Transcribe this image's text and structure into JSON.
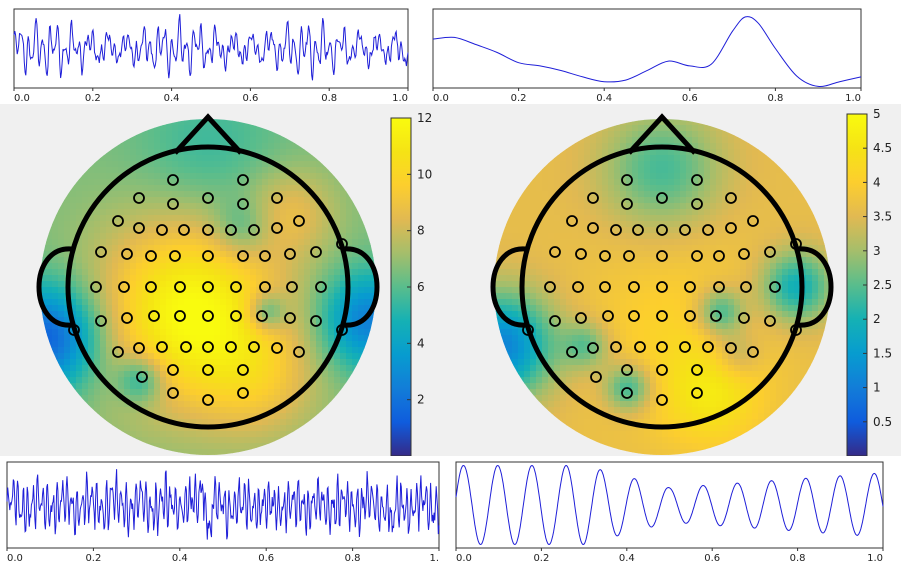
{
  "chart_data": [
    {
      "type": "line",
      "name": "trace-top-left",
      "xlim": [
        0,
        1
      ],
      "x_ticks": [
        "0.0",
        "0.2",
        "0.4",
        "0.6",
        "0.8",
        "1.0"
      ],
      "signal": "eeg-broadband",
      "color": "#1f1fd8"
    },
    {
      "type": "line",
      "name": "trace-top-right",
      "xlim": [
        0,
        1
      ],
      "x_ticks": [
        "0.0",
        "0.2",
        "0.4",
        "0.6",
        "0.8",
        "1.0"
      ],
      "x": [
        0,
        0.05,
        0.1,
        0.15,
        0.2,
        0.25,
        0.3,
        0.35,
        0.4,
        0.45,
        0.5,
        0.55,
        0.6,
        0.65,
        0.7,
        0.73,
        0.76,
        0.8,
        0.85,
        0.9,
        0.95,
        1.0
      ],
      "y": [
        0.62,
        0.64,
        0.55,
        0.45,
        0.32,
        0.28,
        0.22,
        0.14,
        0.08,
        0.1,
        0.22,
        0.34,
        0.28,
        0.3,
        0.72,
        0.9,
        0.82,
        0.5,
        0.15,
        0.02,
        0.08,
        0.14
      ],
      "color": "#1f1fd8"
    },
    {
      "type": "heatmap",
      "name": "topomap-left",
      "colorbar_ticks": [
        "2",
        "4",
        "6",
        "8",
        "10",
        "12"
      ],
      "colorbar_range": [
        0,
        12
      ]
    },
    {
      "type": "heatmap",
      "name": "topomap-right",
      "colorbar_ticks": [
        "0.5",
        "1",
        "1.5",
        "2",
        "2.5",
        "3",
        "3.5",
        "4",
        "4.5",
        "5"
      ],
      "colorbar_range": [
        0,
        5
      ]
    },
    {
      "type": "line",
      "name": "trace-bottom-left",
      "xlim": [
        0,
        1
      ],
      "x_ticks": [
        "0.0",
        "0.2",
        "0.4",
        "0.6",
        "0.8",
        "1."
      ],
      "signal": "eeg-fast",
      "color": "#1f1fd8"
    },
    {
      "type": "line",
      "name": "trace-bottom-right",
      "xlim": [
        0,
        1
      ],
      "x_ticks": [
        "0.0",
        "0.2",
        "0.4",
        "0.6",
        "0.8",
        "1.0"
      ],
      "signal": "modulated-sine",
      "color": "#1f1fd8"
    }
  ]
}
